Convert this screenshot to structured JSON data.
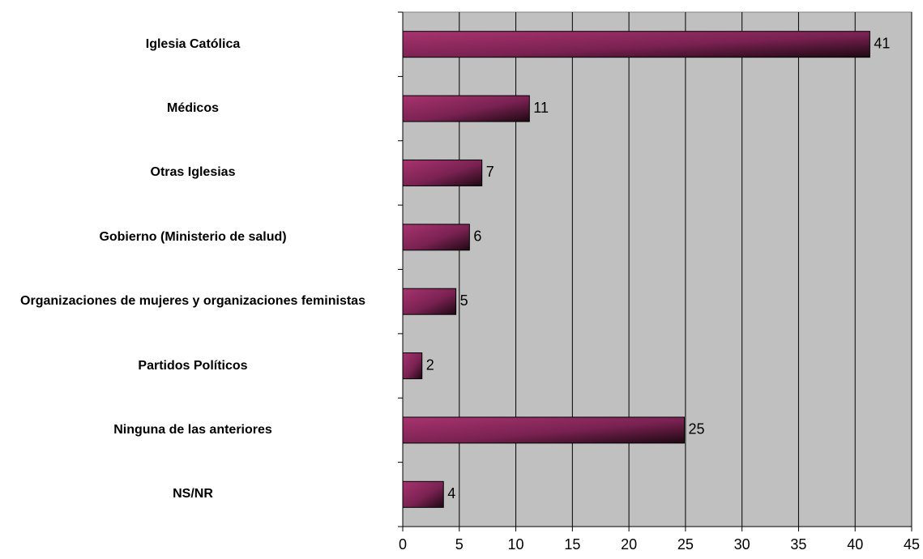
{
  "chart_data": {
    "type": "barh",
    "categories": [
      "Iglesia Católica",
      "Médicos",
      "Otras Iglesias",
      "Gobierno (Ministerio de salud)",
      "Organizaciones de mujeres y organizaciones feministas",
      "Partidos Políticos",
      "Ninguna de las anteriores",
      "NS/NR"
    ],
    "values": [
      41.3,
      11.2,
      7.0,
      5.9,
      4.7,
      1.7,
      24.9,
      3.6
    ],
    "value_labels": [
      "41",
      "11",
      "7",
      "6",
      "5",
      "2",
      "25",
      "4"
    ],
    "color": "#9e2f68",
    "xlim": [
      0,
      45
    ],
    "xticks": [
      0,
      5,
      10,
      15,
      20,
      25,
      30,
      35,
      40,
      45
    ],
    "grid": true
  }
}
